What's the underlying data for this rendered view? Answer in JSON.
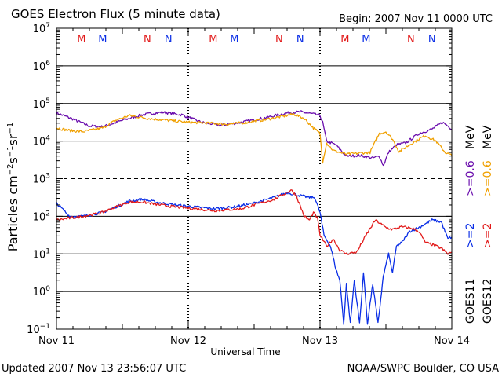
{
  "title": "GOES Electron Flux (5 minute data)",
  "begin_label": "Begin: 2007 Nov 11 0000 UTC",
  "updated_label": "Updated 2007 Nov 13 23:56:07 UTC",
  "credit_label": "NOAA/SWPC Boulder, CO USA",
  "colors": {
    "goes11_lo": "#6a0dad",
    "goes11_hi": "#0a2ee6",
    "goes12_lo": "#f0a000",
    "goes12_hi": "#e21a1a",
    "marker_m": "#e21a1a",
    "marker_n": "#0a2ee6",
    "axis": "#000000"
  },
  "chart_data": {
    "type": "line",
    "title": "GOES Electron Flux (5 minute data)",
    "xlabel": "Universal Time",
    "ylabel": "Particles cm-2 s-1 sr-1",
    "yscale": "log",
    "ylim_exponents": [
      -1,
      7
    ],
    "xlim_days": [
      0,
      3
    ],
    "x_ticks": [
      {
        "day": 0,
        "label": "Nov 11"
      },
      {
        "day": 1,
        "label": "Nov 12"
      },
      {
        "day": 2,
        "label": "Nov 13"
      },
      {
        "day": 3,
        "label": "Nov 14"
      }
    ],
    "y_ticks": [
      {
        "exp": -1,
        "label": "10",
        "sup": "−1"
      },
      {
        "exp": 0,
        "label": "10",
        "sup": "0"
      },
      {
        "exp": 1,
        "label": "10",
        "sup": "1"
      },
      {
        "exp": 2,
        "label": "10",
        "sup": "2"
      },
      {
        "exp": 3,
        "label": "10",
        "sup": "3"
      },
      {
        "exp": 4,
        "label": "10",
        "sup": "4"
      },
      {
        "exp": 5,
        "label": "10",
        "sup": "5"
      },
      {
        "exp": 6,
        "label": "10",
        "sup": "6"
      },
      {
        "exp": 7,
        "label": "10",
        "sup": "7"
      }
    ],
    "dashed_threshold_exp": 3,
    "legend": {
      "placement": "right",
      "columns": [
        {
          "group": "GOES11",
          "hi_label": ">=2",
          "lo_label": ">=0.6",
          "hi_color_key": "goes11_hi",
          "lo_color_key": "goes11_lo"
        },
        {
          "group": "GOES12",
          "hi_label": ">=2",
          "lo_label": ">=0.6",
          "hi_color_key": "goes12_hi",
          "lo_color_key": "goes12_lo"
        }
      ],
      "unit": "MeV"
    },
    "markers": [
      {
        "day": 0.19,
        "label": "M",
        "color_key": "marker_m"
      },
      {
        "day": 0.35,
        "label": "M",
        "color_key": "marker_n"
      },
      {
        "day": 0.69,
        "label": "N",
        "color_key": "marker_m"
      },
      {
        "day": 0.85,
        "label": "N",
        "color_key": "marker_n"
      },
      {
        "day": 1.19,
        "label": "M",
        "color_key": "marker_m"
      },
      {
        "day": 1.35,
        "label": "M",
        "color_key": "marker_n"
      },
      {
        "day": 1.69,
        "label": "N",
        "color_key": "marker_m"
      },
      {
        "day": 1.85,
        "label": "N",
        "color_key": "marker_n"
      },
      {
        "day": 2.19,
        "label": "M",
        "color_key": "marker_m"
      },
      {
        "day": 2.35,
        "label": "M",
        "color_key": "marker_n"
      },
      {
        "day": 2.69,
        "label": "N",
        "color_key": "marker_m"
      },
      {
        "day": 2.85,
        "label": "N",
        "color_key": "marker_n"
      }
    ],
    "series": [
      {
        "name": "GOES11 >=0.6 MeV",
        "color_key": "goes11_lo",
        "points": [
          [
            0,
            4.75
          ],
          [
            0.1,
            4.62
          ],
          [
            0.25,
            4.4
          ],
          [
            0.35,
            4.38
          ],
          [
            0.5,
            4.55
          ],
          [
            0.65,
            4.7
          ],
          [
            0.8,
            4.77
          ],
          [
            0.95,
            4.7
          ],
          [
            1.1,
            4.5
          ],
          [
            1.25,
            4.42
          ],
          [
            1.4,
            4.5
          ],
          [
            1.6,
            4.63
          ],
          [
            1.75,
            4.75
          ],
          [
            1.85,
            4.78
          ],
          [
            1.95,
            4.72
          ],
          [
            2.0,
            4.68
          ],
          [
            2.02,
            4.5
          ],
          [
            2.05,
            4.0
          ],
          [
            2.12,
            3.9
          ],
          [
            2.2,
            3.6
          ],
          [
            2.3,
            3.62
          ],
          [
            2.4,
            3.55
          ],
          [
            2.45,
            3.6
          ],
          [
            2.48,
            3.35
          ],
          [
            2.52,
            3.7
          ],
          [
            2.58,
            3.9
          ],
          [
            2.65,
            3.95
          ],
          [
            2.75,
            4.2
          ],
          [
            2.85,
            4.32
          ],
          [
            2.93,
            4.5
          ],
          [
            2.98,
            4.38
          ],
          [
            3.0,
            4.32
          ]
        ]
      },
      {
        "name": "GOES12 >=0.6 MeV",
        "color_key": "goes12_lo",
        "points": [
          [
            0,
            4.35
          ],
          [
            0.1,
            4.28
          ],
          [
            0.2,
            4.25
          ],
          [
            0.35,
            4.35
          ],
          [
            0.45,
            4.55
          ],
          [
            0.55,
            4.68
          ],
          [
            0.7,
            4.6
          ],
          [
            0.85,
            4.55
          ],
          [
            1.0,
            4.5
          ],
          [
            1.15,
            4.48
          ],
          [
            1.3,
            4.45
          ],
          [
            1.45,
            4.5
          ],
          [
            1.6,
            4.58
          ],
          [
            1.75,
            4.68
          ],
          [
            1.8,
            4.72
          ],
          [
            1.88,
            4.6
          ],
          [
            1.95,
            4.35
          ],
          [
            2.0,
            4.2
          ],
          [
            2.02,
            3.45
          ],
          [
            2.05,
            3.95
          ],
          [
            2.1,
            3.75
          ],
          [
            2.2,
            3.65
          ],
          [
            2.3,
            3.68
          ],
          [
            2.38,
            3.7
          ],
          [
            2.45,
            4.2
          ],
          [
            2.5,
            4.25
          ],
          [
            2.55,
            4.05
          ],
          [
            2.6,
            3.72
          ],
          [
            2.7,
            3.95
          ],
          [
            2.8,
            4.15
          ],
          [
            2.88,
            4.0
          ],
          [
            2.95,
            3.7
          ],
          [
            3.0,
            3.62
          ]
        ]
      },
      {
        "name": "GOES11 >=2 MeV",
        "color_key": "goes11_hi",
        "points": [
          [
            0,
            2.35
          ],
          [
            0.1,
            2.0
          ],
          [
            0.2,
            2.0
          ],
          [
            0.35,
            2.1
          ],
          [
            0.45,
            2.25
          ],
          [
            0.55,
            2.4
          ],
          [
            0.65,
            2.45
          ],
          [
            0.75,
            2.38
          ],
          [
            0.9,
            2.3
          ],
          [
            1.05,
            2.25
          ],
          [
            1.2,
            2.2
          ],
          [
            1.35,
            2.25
          ],
          [
            1.5,
            2.35
          ],
          [
            1.65,
            2.5
          ],
          [
            1.75,
            2.63
          ],
          [
            1.85,
            2.55
          ],
          [
            1.92,
            2.5
          ],
          [
            1.96,
            2.5
          ],
          [
            2.0,
            2.1
          ],
          [
            2.03,
            1.5
          ],
          [
            2.08,
            1.2
          ],
          [
            2.12,
            0.6
          ],
          [
            2.15,
            0.3
          ],
          [
            2.18,
            -0.85
          ],
          [
            2.2,
            0.2
          ],
          [
            2.23,
            -0.85
          ],
          [
            2.26,
            0.3
          ],
          [
            2.3,
            -0.85
          ],
          [
            2.33,
            0.5
          ],
          [
            2.36,
            -0.85
          ],
          [
            2.4,
            0.2
          ],
          [
            2.44,
            -0.85
          ],
          [
            2.48,
            0.4
          ],
          [
            2.52,
            1.0
          ],
          [
            2.55,
            0.5
          ],
          [
            2.58,
            1.2
          ],
          [
            2.62,
            1.3
          ],
          [
            2.68,
            1.6
          ],
          [
            2.75,
            1.7
          ],
          [
            2.85,
            1.9
          ],
          [
            2.92,
            1.85
          ],
          [
            2.97,
            1.4
          ],
          [
            3.0,
            1.45
          ]
        ]
      },
      {
        "name": "GOES12 >=2 MeV",
        "color_key": "goes12_hi",
        "points": [
          [
            0,
            1.9
          ],
          [
            0.1,
            1.95
          ],
          [
            0.2,
            2.0
          ],
          [
            0.35,
            2.1
          ],
          [
            0.45,
            2.25
          ],
          [
            0.55,
            2.38
          ],
          [
            0.65,
            2.38
          ],
          [
            0.75,
            2.32
          ],
          [
            0.9,
            2.25
          ],
          [
            1.05,
            2.2
          ],
          [
            1.2,
            2.15
          ],
          [
            1.4,
            2.2
          ],
          [
            1.55,
            2.35
          ],
          [
            1.65,
            2.45
          ],
          [
            1.72,
            2.58
          ],
          [
            1.78,
            2.7
          ],
          [
            1.82,
            2.55
          ],
          [
            1.88,
            2.0
          ],
          [
            1.92,
            1.9
          ],
          [
            1.95,
            2.1
          ],
          [
            1.98,
            1.95
          ],
          [
            2.0,
            1.5
          ],
          [
            2.05,
            1.2
          ],
          [
            2.1,
            1.4
          ],
          [
            2.15,
            1.1
          ],
          [
            2.2,
            1.0
          ],
          [
            2.28,
            1.05
          ],
          [
            2.35,
            1.5
          ],
          [
            2.42,
            1.9
          ],
          [
            2.5,
            1.7
          ],
          [
            2.55,
            1.65
          ],
          [
            2.62,
            1.72
          ],
          [
            2.7,
            1.68
          ],
          [
            2.75,
            1.6
          ],
          [
            2.8,
            1.3
          ],
          [
            2.85,
            1.25
          ],
          [
            2.92,
            1.15
          ],
          [
            2.97,
            1.0
          ],
          [
            3.0,
            1.05
          ]
        ]
      }
    ]
  }
}
